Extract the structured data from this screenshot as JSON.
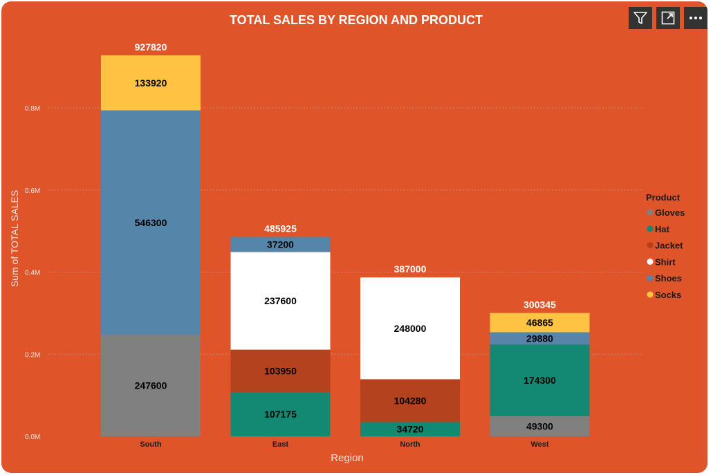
{
  "title": "TOTAL SALES BY REGION AND PRODUCT",
  "toolbar": {
    "filter_icon": "filter-icon",
    "focus_icon": "focus-mode-icon",
    "more_icon": "more-options-icon",
    "more_label": "..."
  },
  "colors": {
    "background": "#e0542a",
    "Gloves": "#808080",
    "Hat": "#138872",
    "Jacket": "#b4421f",
    "Shirt": "#ffffff",
    "Shoes": "#5585a9",
    "Socks": "#fec342"
  },
  "chart_data": {
    "type": "bar",
    "stacked": true,
    "title": "TOTAL SALES BY REGION AND PRODUCT",
    "xlabel": "Region",
    "ylabel": "Sum of TOTAL SALES",
    "categories": [
      "South",
      "East",
      "North",
      "West"
    ],
    "ylim": [
      0,
      930000
    ],
    "yticks": [
      0,
      200000,
      400000,
      600000,
      800000
    ],
    "ytick_labels": [
      "0.0M",
      "0.2M",
      "0.4M",
      "0.6M",
      "0.8M"
    ],
    "grid": true,
    "legend_title": "Product",
    "legend_position": "right",
    "series": [
      {
        "name": "Gloves",
        "values": [
          247600,
          0,
          0,
          49300
        ]
      },
      {
        "name": "Hat",
        "values": [
          0,
          107175,
          34720,
          174300
        ]
      },
      {
        "name": "Jacket",
        "values": [
          0,
          103950,
          104280,
          0
        ]
      },
      {
        "name": "Shirt",
        "values": [
          0,
          237600,
          248000,
          0
        ]
      },
      {
        "name": "Shoes",
        "values": [
          546300,
          37200,
          0,
          29880
        ]
      },
      {
        "name": "Socks",
        "values": [
          133920,
          0,
          0,
          46865
        ]
      }
    ],
    "totals": [
      927820,
      485925,
      387000,
      300345
    ]
  }
}
